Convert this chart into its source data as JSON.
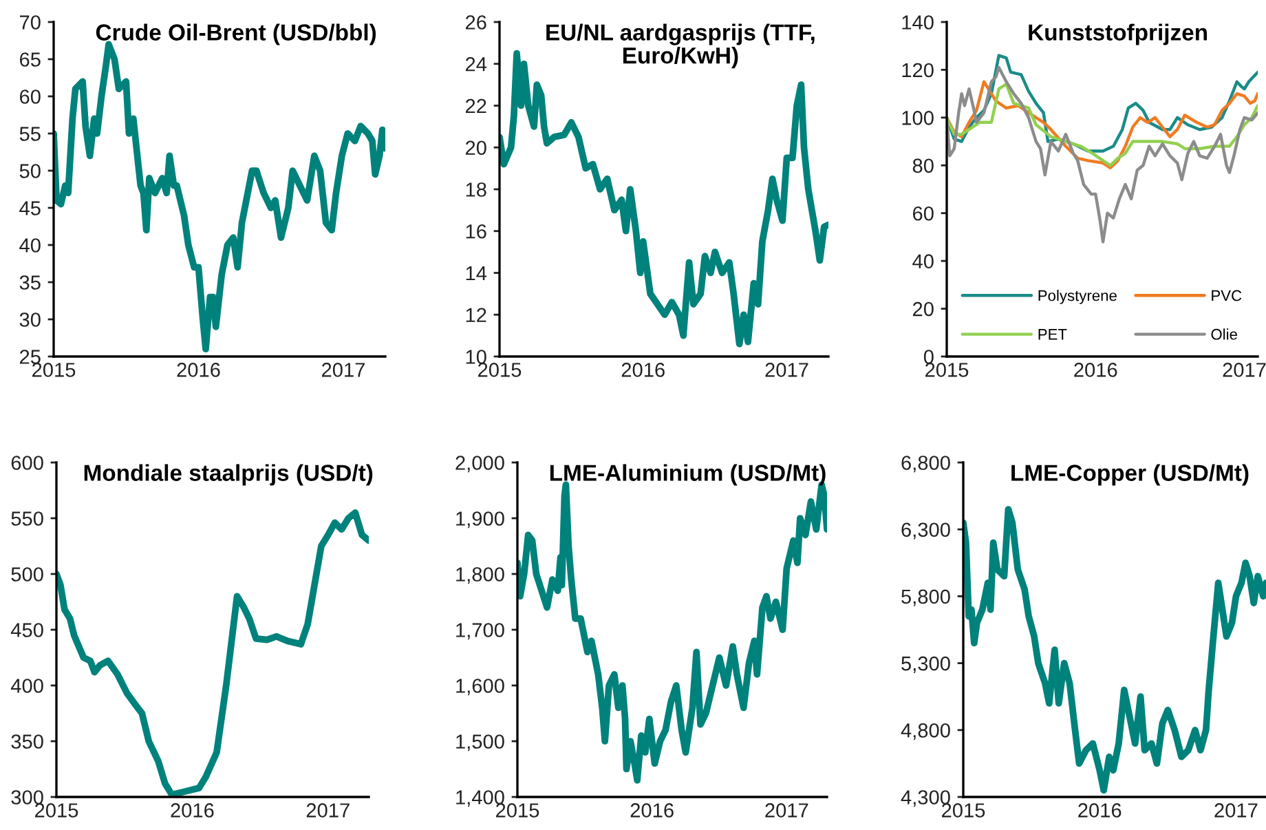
{
  "chart_data": [
    {
      "type": "line",
      "title": "Crude Oil-Brent (USD/bbl)",
      "xlim": [
        2015,
        2017.29
      ],
      "xticks": [
        2015,
        2016,
        2017
      ],
      "ylim": [
        25,
        70
      ],
      "yticks": [
        25,
        30,
        35,
        40,
        45,
        50,
        55,
        60,
        65,
        70
      ],
      "grid": false,
      "legend": false,
      "series": [
        {
          "color": "#00827c",
          "x": [
            2015.0,
            2015.02,
            2015.05,
            2015.08,
            2015.1,
            2015.13,
            2015.15,
            2015.2,
            2015.22,
            2015.25,
            2015.28,
            2015.3,
            2015.33,
            2015.36,
            2015.38,
            2015.42,
            2015.45,
            2015.5,
            2015.52,
            2015.55,
            2015.6,
            2015.62,
            2015.64,
            2015.66,
            2015.7,
            2015.75,
            2015.78,
            2015.8,
            2015.83,
            2015.85,
            2015.9,
            2015.93,
            2015.97,
            2016.0,
            2016.03,
            2016.05,
            2016.08,
            2016.1,
            2016.12,
            2016.16,
            2016.2,
            2016.24,
            2016.27,
            2016.3,
            2016.33,
            2016.37,
            2016.4,
            2016.45,
            2016.5,
            2016.53,
            2016.57,
            2016.62,
            2016.65,
            2016.7,
            2016.75,
            2016.8,
            2016.84,
            2016.88,
            2016.92,
            2016.95,
            2016.99,
            2017.03,
            2017.08,
            2017.12,
            2017.17,
            2017.2,
            2017.22,
            2017.25,
            2017.27,
            2017.29
          ],
          "values": [
            55,
            46,
            45.5,
            48,
            47,
            57,
            61,
            62,
            56,
            52,
            57,
            55,
            60,
            64,
            67,
            65,
            61,
            62,
            55,
            57,
            48,
            47,
            42,
            49,
            47,
            49,
            47,
            52,
            48,
            48,
            44,
            40,
            37,
            37,
            30,
            26,
            33,
            33,
            29,
            36,
            40,
            41,
            37,
            43,
            46,
            50,
            50,
            47,
            45,
            46,
            41,
            45,
            50,
            48,
            46,
            52,
            50,
            43,
            42,
            47,
            52,
            55,
            54,
            56,
            55,
            54,
            49.5,
            52,
            55.5,
            53
          ]
        }
      ]
    },
    {
      "type": "line",
      "title": "EU/NL aardgasprijs (TTF,\nEuro/KwH)",
      "xlim": [
        2015,
        2017.29
      ],
      "xticks": [
        2015,
        2016,
        2017
      ],
      "ylim": [
        10,
        26
      ],
      "yticks": [
        10,
        12,
        14,
        16,
        18,
        20,
        22,
        24,
        26
      ],
      "grid": false,
      "legend": false,
      "series": [
        {
          "color": "#00827c",
          "x": [
            2015.0,
            2015.03,
            2015.08,
            2015.1,
            2015.12,
            2015.15,
            2015.17,
            2015.2,
            2015.24,
            2015.26,
            2015.29,
            2015.31,
            2015.33,
            2015.38,
            2015.45,
            2015.5,
            2015.55,
            2015.6,
            2015.65,
            2015.7,
            2015.75,
            2015.8,
            2015.85,
            2015.88,
            2015.91,
            2015.95,
            2015.98,
            2016.0,
            2016.05,
            2016.1,
            2016.15,
            2016.2,
            2016.25,
            2016.28,
            2016.32,
            2016.35,
            2016.4,
            2016.43,
            2016.47,
            2016.5,
            2016.55,
            2016.6,
            2016.63,
            2016.67,
            2016.7,
            2016.73,
            2016.77,
            2016.8,
            2016.83,
            2016.87,
            2016.9,
            2016.93,
            2016.97,
            2017.0,
            2017.04,
            2017.07,
            2017.1,
            2017.12,
            2017.15,
            2017.2,
            2017.23,
            2017.26,
            2017.29
          ],
          "values": [
            20.5,
            19.2,
            20,
            21.5,
            24.5,
            22,
            24,
            22,
            21,
            23,
            22.5,
            21,
            20.2,
            20.5,
            20.6,
            21.2,
            20.5,
            19,
            19.2,
            18,
            18.5,
            17,
            17.5,
            16,
            18,
            16,
            14,
            15.5,
            13,
            12.5,
            12,
            12.6,
            12,
            11,
            14.5,
            12.5,
            13,
            14.8,
            14,
            15,
            14,
            14.5,
            13,
            10.6,
            12,
            10.7,
            13.5,
            12.5,
            15.5,
            17,
            18.5,
            17.5,
            16.5,
            19.5,
            19.5,
            22,
            23,
            20,
            18,
            16,
            14.6,
            16.2,
            16.3
          ]
        }
      ]
    },
    {
      "type": "line",
      "title": "Kunststofprijzen",
      "xlim": [
        2015,
        2017.09
      ],
      "xticks": [
        2015,
        2016,
        2017
      ],
      "ylim": [
        0,
        140
      ],
      "yticks": [
        0,
        20,
        40,
        60,
        80,
        100,
        120,
        140
      ],
      "grid": false,
      "legend": "bottom",
      "series": [
        {
          "name": "Polystyrene",
          "color": "#1a8c88",
          "x": [
            2015.0,
            2015.05,
            2015.1,
            2015.15,
            2015.2,
            2015.25,
            2015.3,
            2015.35,
            2015.4,
            2015.43,
            2015.5,
            2015.55,
            2015.6,
            2015.65,
            2015.68,
            2015.75,
            2015.8,
            2015.85,
            2015.95,
            2016.05,
            2016.12,
            2016.18,
            2016.22,
            2016.27,
            2016.32,
            2016.36,
            2016.45,
            2016.5,
            2016.55,
            2016.62,
            2016.7,
            2016.78,
            2016.85,
            2016.9,
            2016.95,
            2016.98,
            2017.0,
            2017.03,
            2017.06,
            2017.09
          ],
          "values": [
            100,
            91,
            90,
            96,
            100,
            103,
            110,
            126,
            125,
            119,
            118,
            111,
            106,
            102,
            90,
            91,
            90,
            89,
            86,
            86,
            88,
            95,
            104,
            106,
            103,
            98,
            95,
            95,
            100,
            97,
            95,
            96,
            100,
            107,
            115,
            113,
            112,
            115,
            117,
            119
          ]
        },
        {
          "name": "PVC",
          "color": "#f07b22",
          "x": [
            2015.0,
            2015.05,
            2015.1,
            2015.15,
            2015.2,
            2015.25,
            2015.3,
            2015.33,
            2015.4,
            2015.48,
            2015.55,
            2015.65,
            2015.7,
            2015.8,
            2015.88,
            2015.95,
            2016.05,
            2016.1,
            2016.15,
            2016.2,
            2016.25,
            2016.3,
            2016.35,
            2016.4,
            2016.45,
            2016.5,
            2016.55,
            2016.6,
            2016.68,
            2016.75,
            2016.8,
            2016.85,
            2016.9,
            2016.95,
            2017.0,
            2017.04,
            2017.07,
            2017.09
          ],
          "values": [
            100,
            94,
            92,
            98,
            103,
            115,
            110,
            107,
            104,
            105,
            102,
            98,
            95,
            88,
            83,
            82,
            81,
            79,
            82,
            88,
            96,
            100,
            98,
            100,
            96,
            92,
            95,
            101,
            98,
            96,
            97,
            103,
            106,
            110,
            109,
            106,
            107,
            110
          ]
        },
        {
          "name": "PET",
          "color": "#92d050",
          "x": [
            2015.0,
            2015.05,
            2015.1,
            2015.15,
            2015.22,
            2015.3,
            2015.35,
            2015.4,
            2015.45,
            2015.55,
            2015.6,
            2015.7,
            2015.8,
            2015.9,
            2015.98,
            2016.05,
            2016.1,
            2016.15,
            2016.2,
            2016.25,
            2016.35,
            2016.45,
            2016.55,
            2016.6,
            2016.7,
            2016.8,
            2016.9,
            2016.95,
            2017.0,
            2017.05,
            2017.09
          ],
          "values": [
            100,
            93,
            93,
            95,
            98,
            98,
            112,
            114,
            106,
            104,
            97,
            92,
            90,
            88,
            85,
            82,
            80,
            83,
            85,
            90,
            90,
            90,
            89,
            87,
            87,
            88,
            88,
            92,
            97,
            100,
            105
          ]
        },
        {
          "name": "Olie",
          "color": "#8c8c8c",
          "x": [
            2015.0,
            2015.02,
            2015.05,
            2015.08,
            2015.1,
            2015.12,
            2015.15,
            2015.18,
            2015.2,
            2015.25,
            2015.3,
            2015.33,
            2015.35,
            2015.4,
            2015.45,
            2015.5,
            2015.55,
            2015.6,
            2015.63,
            2015.66,
            2015.7,
            2015.75,
            2015.8,
            2015.85,
            2015.88,
            2015.92,
            2015.97,
            2016.0,
            2016.03,
            2016.05,
            2016.08,
            2016.12,
            2016.16,
            2016.2,
            2016.24,
            2016.28,
            2016.32,
            2016.36,
            2016.4,
            2016.45,
            2016.5,
            2016.55,
            2016.58,
            2016.62,
            2016.66,
            2016.7,
            2016.75,
            2016.8,
            2016.84,
            2016.88,
            2016.9,
            2016.93,
            2016.97,
            2017.0,
            2017.05,
            2017.09
          ],
          "values": [
            100,
            84,
            87,
            102,
            110,
            105,
            112,
            104,
            98,
            102,
            115,
            117,
            121,
            115,
            110,
            106,
            100,
            90,
            87,
            76,
            90,
            86,
            93,
            85,
            82,
            72,
            68,
            68,
            57,
            48,
            60,
            58,
            66,
            72,
            66,
            78,
            80,
            88,
            84,
            89,
            84,
            81,
            74,
            85,
            90,
            84,
            83,
            88,
            93,
            80,
            77,
            84,
            95,
            100,
            99,
            102
          ]
        }
      ]
    },
    {
      "type": "line",
      "title": "Mondiale staalprijs (USD/t)",
      "xlim": [
        2015,
        2017.3
      ],
      "xticks": [
        2015,
        2016,
        2017
      ],
      "ylim": [
        300,
        600
      ],
      "yticks": [
        300,
        350,
        400,
        450,
        500,
        550,
        600
      ],
      "grid": false,
      "legend": false,
      "series": [
        {
          "color": "#00827c",
          "x": [
            2015.0,
            2015.03,
            2015.06,
            2015.1,
            2015.13,
            2015.2,
            2015.25,
            2015.28,
            2015.32,
            2015.38,
            2015.45,
            2015.52,
            2015.58,
            2015.63,
            2015.68,
            2015.75,
            2015.8,
            2015.85,
            2015.95,
            2016.05,
            2016.1,
            2016.18,
            2016.25,
            2016.3,
            2016.33,
            2016.38,
            2016.42,
            2016.47,
            2016.55,
            2016.62,
            2016.7,
            2016.8,
            2016.85,
            2016.9,
            2016.95,
            2017.0,
            2017.05,
            2017.1,
            2017.15,
            2017.2,
            2017.25,
            2017.3
          ],
          "values": [
            500,
            490,
            468,
            460,
            445,
            425,
            422,
            412,
            418,
            422,
            410,
            393,
            383,
            375,
            350,
            332,
            312,
            302,
            305,
            308,
            318,
            340,
            400,
            450,
            480,
            470,
            460,
            442,
            441,
            444,
            440,
            437,
            455,
            490,
            525,
            535,
            546,
            540,
            550,
            555,
            535,
            530
          ]
        }
      ]
    },
    {
      "type": "line",
      "title": "LME-Aluminium (USD/Mt)",
      "xlim": [
        2015,
        2017.3
      ],
      "xticks": [
        2015,
        2016,
        2017
      ],
      "ylim": [
        1400,
        2000
      ],
      "yticks": [
        {
          "value": 1400,
          "label": "1,400"
        },
        {
          "value": 1500,
          "label": "1,500"
        },
        {
          "value": 1600,
          "label": "1,600"
        },
        {
          "value": 1700,
          "label": "1,700"
        },
        {
          "value": 1800,
          "label": "1,800"
        },
        {
          "value": 1900,
          "label": "1,900"
        },
        {
          "value": 2000,
          "label": "2,000"
        }
      ],
      "grid": false,
      "legend": false,
      "series": [
        {
          "color": "#00827c",
          "x": [
            2015.0,
            2015.02,
            2015.05,
            2015.08,
            2015.11,
            2015.14,
            2015.18,
            2015.22,
            2015.26,
            2015.3,
            2015.32,
            2015.33,
            2015.35,
            2015.36,
            2015.38,
            2015.4,
            2015.43,
            2015.47,
            2015.52,
            2015.55,
            2015.6,
            2015.63,
            2015.65,
            2015.68,
            2015.72,
            2015.75,
            2015.78,
            2015.8,
            2015.81,
            2015.84,
            2015.87,
            2015.89,
            2015.92,
            2015.95,
            2015.98,
            2016.02,
            2016.06,
            2016.1,
            2016.14,
            2016.18,
            2016.22,
            2016.25,
            2016.3,
            2016.33,
            2016.36,
            2016.4,
            2016.45,
            2016.5,
            2016.55,
            2016.6,
            2016.63,
            2016.68,
            2016.72,
            2016.76,
            2016.78,
            2016.82,
            2016.85,
            2016.88,
            2016.92,
            2016.97,
            2017.0,
            2017.05,
            2017.08,
            2017.1,
            2017.14,
            2017.18,
            2017.22,
            2017.26,
            2017.28,
            2017.3
          ],
          "values": [
            1820,
            1760,
            1800,
            1870,
            1860,
            1800,
            1770,
            1740,
            1790,
            1770,
            1830,
            1780,
            1940,
            1960,
            1850,
            1790,
            1720,
            1720,
            1660,
            1680,
            1620,
            1560,
            1500,
            1600,
            1620,
            1560,
            1600,
            1540,
            1450,
            1500,
            1460,
            1430,
            1510,
            1480,
            1540,
            1460,
            1500,
            1520,
            1570,
            1600,
            1520,
            1480,
            1560,
            1660,
            1530,
            1550,
            1600,
            1650,
            1600,
            1670,
            1620,
            1560,
            1640,
            1680,
            1620,
            1740,
            1760,
            1720,
            1750,
            1700,
            1810,
            1860,
            1820,
            1900,
            1870,
            1930,
            1880,
            1960,
            1940,
            1880
          ]
        }
      ]
    },
    {
      "type": "line",
      "title": "LME-Copper (USD/Mt)",
      "xlim": [
        2015,
        2017.22
      ],
      "xticks": [
        2015,
        2016,
        2017
      ],
      "ylim": [
        4300,
        6800
      ],
      "yticks": [
        {
          "value": 4300,
          "label": "4,300"
        },
        {
          "value": 4800,
          "label": "4,800"
        },
        {
          "value": 5300,
          "label": "5,300"
        },
        {
          "value": 5800,
          "label": "5,800"
        },
        {
          "value": 6300,
          "label": "6,300"
        },
        {
          "value": 6800,
          "label": "6,800"
        }
      ],
      "grid": false,
      "legend": false,
      "series": [
        {
          "color": "#00827c",
          "x": [
            2015.0,
            2015.02,
            2015.04,
            2015.06,
            2015.08,
            2015.1,
            2015.14,
            2015.18,
            2015.2,
            2015.22,
            2015.25,
            2015.3,
            2015.33,
            2015.36,
            2015.4,
            2015.45,
            2015.48,
            2015.52,
            2015.55,
            2015.6,
            2015.63,
            2015.67,
            2015.7,
            2015.74,
            2015.78,
            2015.82,
            2015.85,
            2015.9,
            2015.95,
            2016.0,
            2016.03,
            2016.07,
            2016.1,
            2016.14,
            2016.18,
            2016.22,
            2016.26,
            2016.3,
            2016.33,
            2016.38,
            2016.42,
            2016.46,
            2016.5,
            2016.55,
            2016.6,
            2016.65,
            2016.7,
            2016.74,
            2016.78,
            2016.8,
            2016.83,
            2016.87,
            2016.9,
            2016.93,
            2016.97,
            2017.0,
            2017.04,
            2017.07,
            2017.1,
            2017.13,
            2017.16,
            2017.2,
            2017.22
          ],
          "values": [
            6350,
            6200,
            5650,
            5700,
            5450,
            5600,
            5700,
            5900,
            5700,
            6200,
            6000,
            5950,
            6450,
            6350,
            6000,
            5850,
            5650,
            5500,
            5300,
            5150,
            5000,
            5400,
            5000,
            5300,
            5150,
            4800,
            4550,
            4650,
            4700,
            4500,
            4350,
            4600,
            4500,
            4700,
            5100,
            4900,
            4700,
            5050,
            4650,
            4700,
            4550,
            4850,
            4950,
            4800,
            4600,
            4650,
            4800,
            4650,
            4800,
            5100,
            5450,
            5900,
            5700,
            5500,
            5600,
            5800,
            5900,
            6050,
            5950,
            5750,
            5950,
            5800,
            5900
          ]
        }
      ]
    }
  ]
}
